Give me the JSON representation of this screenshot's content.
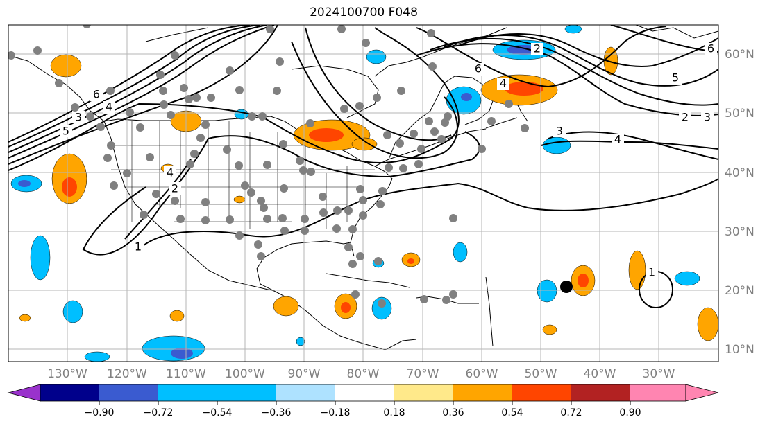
{
  "title": "2024100700 F048",
  "colors": {
    "grid": "#b5b5b5",
    "tick_text": "#808080",
    "contour": "#000000",
    "station_dot": "#808080",
    "storm_dot": "#000000"
  },
  "latitude_labels": [
    "60°N",
    "50°N",
    "40°N",
    "30°N",
    "20°N",
    "10°N"
  ],
  "longitude_labels": [
    "130°W",
    "120°W",
    "110°W",
    "100°W",
    "90°W",
    "80°W",
    "70°W",
    "60°W",
    "50°W",
    "40°W",
    "30°W"
  ],
  "colorbar": {
    "colors": [
      "#9932cc",
      "#00008b",
      "#3a5bd0",
      "#00bfff",
      "#aee2ff",
      "#ffffff",
      "#ffe98a",
      "#ffa500",
      "#ff4500",
      "#b22222",
      "#ff85b1"
    ],
    "tick_labels": [
      "−0.90",
      "−0.72",
      "−0.54",
      "−0.36",
      "−0.18",
      "0.18",
      "0.36",
      "0.54",
      "0.72",
      "0.90"
    ]
  },
  "contour_labels": [
    "6",
    "4",
    "5",
    "3",
    "2",
    "1",
    "4",
    "6",
    "4",
    "3",
    "4",
    "2",
    "3",
    "5",
    "6",
    "1",
    "2"
  ]
}
